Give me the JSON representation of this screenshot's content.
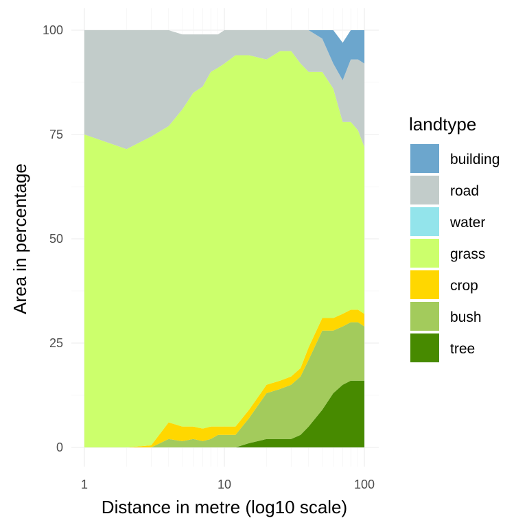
{
  "chart_data": {
    "type": "area",
    "stacked": true,
    "xlabel": "Distance in metre (log10 scale)",
    "ylabel": "Area in percentage",
    "x_scale": "log10",
    "xlim": [
      1,
      100
    ],
    "ylim": [
      0,
      100
    ],
    "x_ticks": [
      1,
      10,
      100
    ],
    "x_tick_labels": [
      "1",
      "10",
      "100"
    ],
    "y_ticks": [
      0,
      25,
      50,
      75,
      100
    ],
    "y_tick_labels": [
      "0",
      "25",
      "50",
      "75",
      "100"
    ],
    "grid": true,
    "legend": {
      "title": "landtype",
      "position": "right"
    },
    "x": [
      1,
      2,
      3,
      4,
      5,
      6,
      7,
      8,
      9,
      10,
      12,
      15,
      20,
      25,
      30,
      35,
      40,
      50,
      60,
      70,
      80,
      90,
      100
    ],
    "series": [
      {
        "name": "tree",
        "color": "#478A00",
        "values": [
          0,
          0,
          0,
          0,
          0,
          0,
          0,
          0,
          0,
          0,
          0,
          1,
          2,
          2,
          2,
          3,
          5,
          9,
          13,
          15,
          16,
          16,
          16
        ]
      },
      {
        "name": "bush",
        "color": "#A3CB5C",
        "values": [
          0,
          0,
          0,
          2,
          1.5,
          2,
          1.5,
          2,
          3,
          3,
          3,
          6,
          11,
          12,
          13,
          14,
          16,
          19,
          15,
          14,
          14,
          14,
          13
        ]
      },
      {
        "name": "crop",
        "color": "#FFD700",
        "values": [
          0,
          0,
          0.5,
          4,
          3.5,
          3,
          3,
          3,
          2,
          2,
          2,
          2,
          2,
          2,
          2,
          2,
          3,
          3,
          3,
          3,
          3,
          3,
          3
        ]
      },
      {
        "name": "grass",
        "color": "#CCFF6C",
        "values": [
          75,
          71.5,
          74,
          71,
          76,
          80,
          82,
          85,
          86,
          87,
          89,
          85,
          78,
          79,
          78,
          73,
          66,
          59,
          55,
          46,
          45,
          43,
          40
        ]
      },
      {
        "name": "water",
        "color": "#93E4EB",
        "values": [
          0,
          0,
          0,
          0,
          0,
          0,
          0,
          0,
          0,
          0,
          0,
          0,
          0,
          0,
          0,
          0,
          0,
          0,
          0,
          0,
          0,
          0,
          0
        ]
      },
      {
        "name": "road",
        "color": "#C2CCCA",
        "values": [
          25,
          28.5,
          25.5,
          23,
          18,
          14,
          12.5,
          9,
          8,
          8,
          6,
          6,
          7,
          5,
          5,
          8,
          10,
          8,
          6,
          10,
          15,
          17,
          20
        ]
      },
      {
        "name": "building",
        "color": "#6CA6CD",
        "values": [
          0,
          0,
          0,
          0,
          0,
          0,
          0,
          0,
          0,
          0,
          0,
          0,
          0,
          0,
          0,
          0,
          0,
          2,
          8,
          9,
          7,
          7,
          8
        ]
      }
    ]
  }
}
